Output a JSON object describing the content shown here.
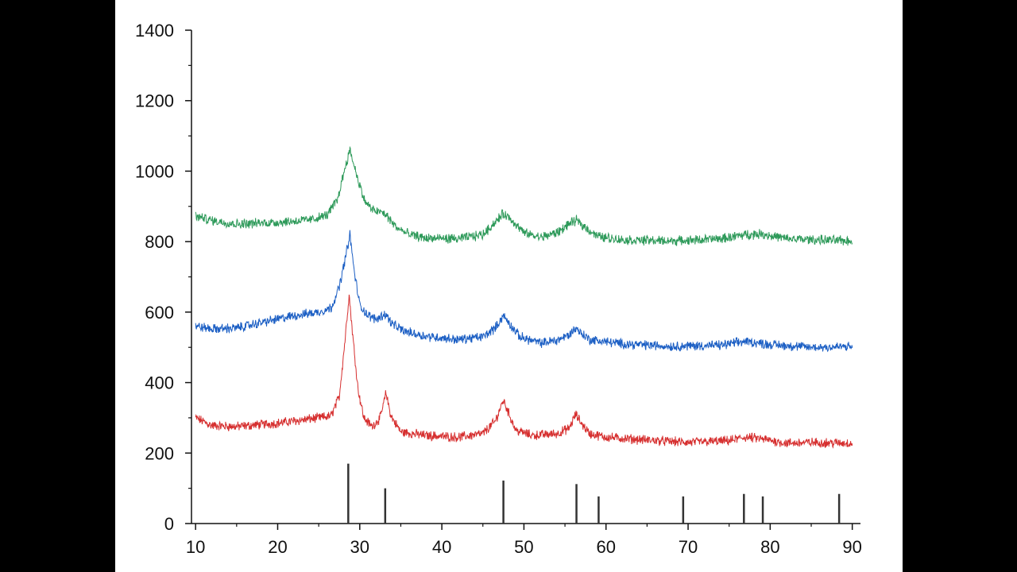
{
  "chart_data": {
    "type": "line",
    "title": "",
    "xlabel": "",
    "ylabel": "",
    "xlim": [
      9.5,
      91
    ],
    "ylim": [
      0,
      1400
    ],
    "x_ticks": [
      "10",
      "20",
      "30",
      "40",
      "50",
      "60",
      "70",
      "80",
      "90"
    ],
    "y_ticks": [
      "0",
      "200",
      "400",
      "600",
      "800",
      "1000",
      "1200",
      "1400"
    ],
    "legend": "none",
    "grid": false,
    "series": [
      {
        "color": "#d62f2f",
        "points": [
          [
            10,
            300
          ],
          [
            12,
            278
          ],
          [
            15,
            275
          ],
          [
            20,
            285
          ],
          [
            25,
            300
          ],
          [
            26.5,
            305
          ],
          [
            27.5,
            360
          ],
          [
            28.2,
            520
          ],
          [
            28.7,
            650
          ],
          [
            29.2,
            520
          ],
          [
            29.8,
            380
          ],
          [
            30.5,
            300
          ],
          [
            31.5,
            275
          ],
          [
            32.5,
            300
          ],
          [
            33.2,
            370
          ],
          [
            33.8,
            305
          ],
          [
            35,
            260
          ],
          [
            38,
            250
          ],
          [
            42,
            245
          ],
          [
            45,
            255
          ],
          [
            46.5,
            290
          ],
          [
            47.5,
            350
          ],
          [
            48.2,
            310
          ],
          [
            49,
            265
          ],
          [
            51,
            250
          ],
          [
            54,
            255
          ],
          [
            55.5,
            270
          ],
          [
            56.3,
            310
          ],
          [
            57,
            285
          ],
          [
            58,
            255
          ],
          [
            60,
            245
          ],
          [
            65,
            237
          ],
          [
            70,
            230
          ],
          [
            75,
            235
          ],
          [
            77,
            245
          ],
          [
            79,
            240
          ],
          [
            82,
            228
          ],
          [
            85,
            230
          ],
          [
            90,
            228
          ]
        ]
      },
      {
        "color": "#1c5fc4",
        "points": [
          [
            10,
            560
          ],
          [
            12,
            552
          ],
          [
            15,
            555
          ],
          [
            18,
            570
          ],
          [
            22,
            590
          ],
          [
            25,
            600
          ],
          [
            26.5,
            612
          ],
          [
            27.5,
            670
          ],
          [
            28.3,
            760
          ],
          [
            28.8,
            820
          ],
          [
            29.3,
            720
          ],
          [
            30,
            620
          ],
          [
            31,
            590
          ],
          [
            32,
            580
          ],
          [
            33.1,
            595
          ],
          [
            34,
            565
          ],
          [
            35.5,
            545
          ],
          [
            38,
            532
          ],
          [
            42,
            522
          ],
          [
            45,
            530
          ],
          [
            46.5,
            555
          ],
          [
            47.5,
            590
          ],
          [
            48.3,
            565
          ],
          [
            49.5,
            530
          ],
          [
            52,
            512
          ],
          [
            54,
            520
          ],
          [
            55.5,
            535
          ],
          [
            56.3,
            555
          ],
          [
            57,
            540
          ],
          [
            58,
            522
          ],
          [
            62,
            510
          ],
          [
            68,
            503
          ],
          [
            74,
            506
          ],
          [
            77,
            517
          ],
          [
            80,
            508
          ],
          [
            85,
            500
          ],
          [
            90,
            502
          ]
        ]
      },
      {
        "color": "#2e9a5a",
        "points": [
          [
            10,
            872
          ],
          [
            12,
            860
          ],
          [
            15,
            850
          ],
          [
            20,
            855
          ],
          [
            24,
            862
          ],
          [
            26,
            875
          ],
          [
            27.3,
            920
          ],
          [
            28.2,
            1010
          ],
          [
            28.8,
            1060
          ],
          [
            29.5,
            1000
          ],
          [
            30.5,
            920
          ],
          [
            31.5,
            890
          ],
          [
            33,
            880
          ],
          [
            34.5,
            840
          ],
          [
            36,
            820
          ],
          [
            38,
            810
          ],
          [
            42,
            808
          ],
          [
            45,
            820
          ],
          [
            46.5,
            855
          ],
          [
            47.5,
            880
          ],
          [
            48.5,
            862
          ],
          [
            50,
            825
          ],
          [
            52,
            812
          ],
          [
            54,
            825
          ],
          [
            55.5,
            850
          ],
          [
            56.4,
            860
          ],
          [
            57.5,
            840
          ],
          [
            59,
            815
          ],
          [
            62,
            805
          ],
          [
            68,
            802
          ],
          [
            74,
            808
          ],
          [
            77,
            820
          ],
          [
            79,
            822
          ],
          [
            82,
            808
          ],
          [
            86,
            805
          ],
          [
            90,
            802
          ]
        ]
      },
      {
        "type": "reference-sticks",
        "color": "#333333",
        "points": [
          [
            28.6,
            170
          ],
          [
            33.1,
            100
          ],
          [
            47.5,
            122
          ],
          [
            56.4,
            112
          ],
          [
            59.1,
            77
          ],
          [
            69.4,
            77
          ],
          [
            76.8,
            84
          ],
          [
            79.1,
            77
          ],
          [
            88.4,
            84
          ]
        ]
      }
    ]
  }
}
